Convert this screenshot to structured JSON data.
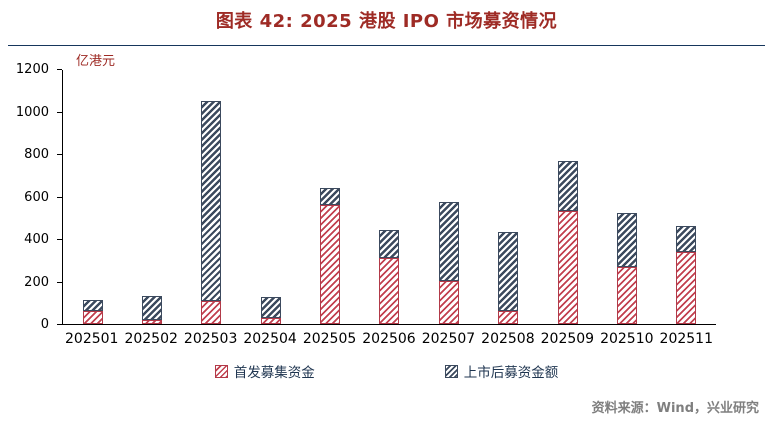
{
  "title": "图表 42: 2025 港股 IPO 市场募资情况",
  "source": "资料来源：Wind，兴业研究",
  "colors": {
    "title": "#9E2B25",
    "ipo_series": "#C2404F",
    "post_listing_series": "#3C4A5E",
    "divider": "#16365C",
    "source_text": "#7F7F7F"
  },
  "chart_data": {
    "type": "bar",
    "stacked": true,
    "title": "图表 42: 2025 港股 IPO 市场募资情况",
    "categories": [
      "202501",
      "202502",
      "202503",
      "202504",
      "202505",
      "202506",
      "202507",
      "202508",
      "202509",
      "202510",
      "202511"
    ],
    "series": [
      {
        "name": "首发募集资金",
        "values": [
          60,
          20,
          110,
          30,
          560,
          310,
          200,
          60,
          530,
          270,
          340
        ]
      },
      {
        "name": "上市后募资金额",
        "values": [
          50,
          115,
          940,
          100,
          80,
          130,
          370,
          370,
          235,
          255,
          120
        ]
      }
    ],
    "xlabel": "",
    "ylabel": "亿港元",
    "ylim": [
      0,
      1200
    ],
    "yticks": [
      0,
      200,
      400,
      600,
      800,
      1000,
      1200
    ],
    "grid": false,
    "legend_position": "bottom"
  }
}
